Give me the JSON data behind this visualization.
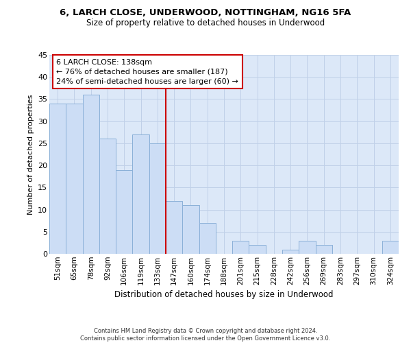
{
  "title1": "6, LARCH CLOSE, UNDERWOOD, NOTTINGHAM, NG16 5FA",
  "title2": "Size of property relative to detached houses in Underwood",
  "xlabel": "Distribution of detached houses by size in Underwood",
  "ylabel": "Number of detached properties",
  "categories": [
    "51sqm",
    "65sqm",
    "78sqm",
    "92sqm",
    "106sqm",
    "119sqm",
    "133sqm",
    "147sqm",
    "160sqm",
    "174sqm",
    "188sqm",
    "201sqm",
    "215sqm",
    "228sqm",
    "242sqm",
    "256sqm",
    "269sqm",
    "283sqm",
    "297sqm",
    "310sqm",
    "324sqm"
  ],
  "values": [
    34,
    34,
    36,
    26,
    19,
    27,
    25,
    12,
    11,
    7,
    0,
    3,
    2,
    0,
    1,
    3,
    2,
    0,
    0,
    0,
    3
  ],
  "bar_color": "#ccddf5",
  "bar_edge_color": "#8ab0d8",
  "highlight_line_color": "#cc0000",
  "annotation_text": "6 LARCH CLOSE: 138sqm\n← 76% of detached houses are smaller (187)\n24% of semi-detached houses are larger (60) →",
  "annotation_box_color": "#ffffff",
  "annotation_box_edge_color": "#cc0000",
  "ylim": [
    0,
    45
  ],
  "yticks": [
    0,
    5,
    10,
    15,
    20,
    25,
    30,
    35,
    40,
    45
  ],
  "footer_text": "Contains HM Land Registry data © Crown copyright and database right 2024.\nContains public sector information licensed under the Open Government Licence v3.0.",
  "background_color": "#dce8f8",
  "grid_color": "#c0d0e8"
}
